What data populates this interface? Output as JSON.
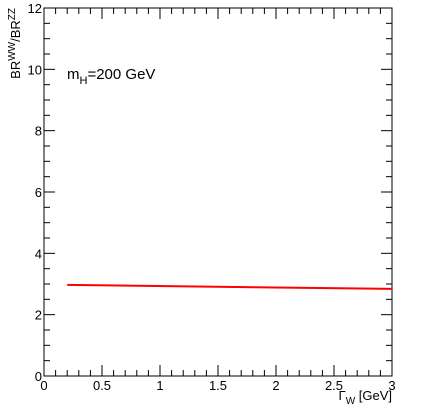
{
  "chart_data": {
    "type": "line",
    "title": "",
    "annotation": {
      "main": "m",
      "sub": "H",
      "rest": "=200 GeV"
    },
    "xlabel": {
      "main": "Γ",
      "sub": "W",
      "rest": " [GeV]"
    },
    "ylabel": {
      "part1": "BR",
      "sup1": "WW",
      "part2": "/BR",
      "sup2": "ZZ"
    },
    "xlim": [
      0,
      3
    ],
    "ylim": [
      0,
      12
    ],
    "xticks": [
      0,
      0.5,
      1,
      1.5,
      2,
      2.5,
      3
    ],
    "xtick_labels": [
      "0",
      "0.5",
      "1",
      "1.5",
      "2",
      "2.5",
      "3"
    ],
    "yticks": [
      0,
      2,
      4,
      6,
      8,
      10,
      12
    ],
    "ytick_labels": [
      "0",
      "2",
      "4",
      "6",
      "8",
      "10",
      "12"
    ],
    "grid": false,
    "series": [
      {
        "color": "#ff0000",
        "x": [
          0.2,
          3.0
        ],
        "y": [
          2.97,
          2.84
        ]
      }
    ]
  }
}
